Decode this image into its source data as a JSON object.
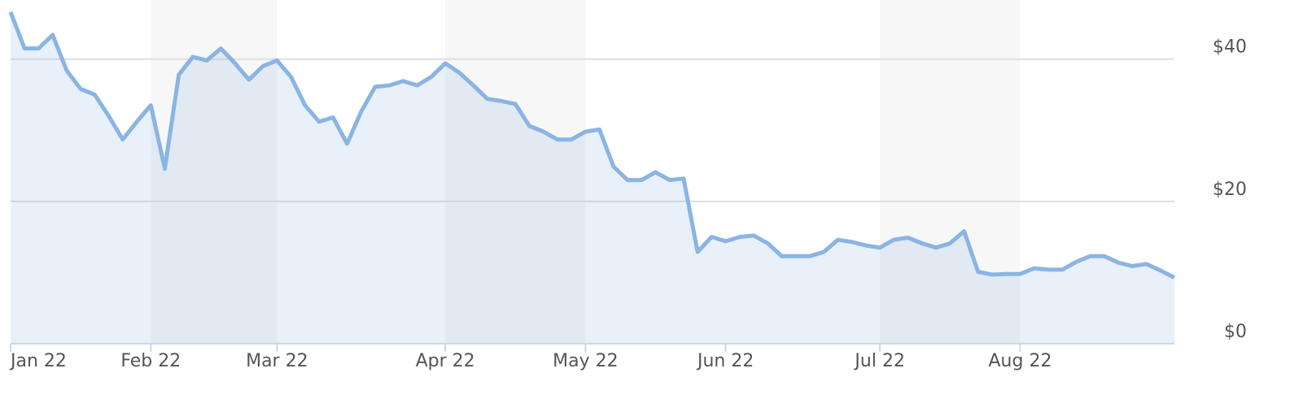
{
  "chart_data": {
    "type": "area",
    "categories": [
      "Jan 22",
      null,
      null,
      null,
      null,
      null,
      null,
      null,
      null,
      null,
      "Feb 22",
      null,
      null,
      null,
      null,
      null,
      null,
      null,
      null,
      "Mar 22",
      null,
      null,
      null,
      null,
      null,
      null,
      null,
      null,
      null,
      null,
      null,
      "Apr 22",
      null,
      null,
      null,
      null,
      null,
      null,
      null,
      null,
      null,
      "May 22",
      null,
      null,
      null,
      null,
      null,
      null,
      null,
      null,
      null,
      "Jun 22",
      null,
      null,
      null,
      null,
      null,
      null,
      null,
      null,
      null,
      null,
      "Jul 22",
      null,
      null,
      null,
      null,
      null,
      null,
      null,
      null,
      null,
      "Aug 22",
      null,
      null,
      null,
      null,
      null,
      null,
      null,
      null,
      null,
      null,
      null
    ],
    "series": [
      {
        "color": "#8ab4e3",
        "values": [
          46.6,
          41.5,
          41.5,
          43.4,
          38.4,
          35.8,
          35.0,
          32.0,
          28.7,
          31.2,
          33.5,
          24.6,
          37.8,
          40.3,
          39.8,
          41.5,
          39.4,
          37.1,
          39.0,
          39.8,
          37.5,
          33.5,
          31.2,
          31.8,
          28.1,
          32.6,
          36.1,
          36.3,
          36.9,
          36.3,
          37.5,
          39.4,
          38.1,
          36.3,
          34.4,
          34.1,
          33.7,
          30.6,
          29.8,
          28.7,
          28.7,
          29.8,
          30.1,
          24.9,
          23.0,
          23.0,
          24.1,
          23.0,
          23.2,
          12.9,
          15.0,
          14.4,
          15.0,
          15.2,
          14.1,
          12.3,
          12.3,
          12.3,
          12.9,
          14.6,
          14.3,
          13.8,
          13.5,
          14.6,
          14.9,
          14.1,
          13.5,
          14.1,
          15.8,
          10.1,
          9.7,
          9.8,
          9.8,
          10.6,
          10.4,
          10.4,
          11.5,
          12.3,
          12.3,
          11.4,
          10.9,
          11.2,
          10.3,
          9.3
        ]
      }
    ],
    "ylim": [
      0,
      48.3
    ],
    "yticks": [
      {
        "value": 0,
        "label": "$0"
      },
      {
        "value": 20,
        "label": "$20"
      },
      {
        "value": 40,
        "label": "$40"
      }
    ],
    "grid": true
  }
}
